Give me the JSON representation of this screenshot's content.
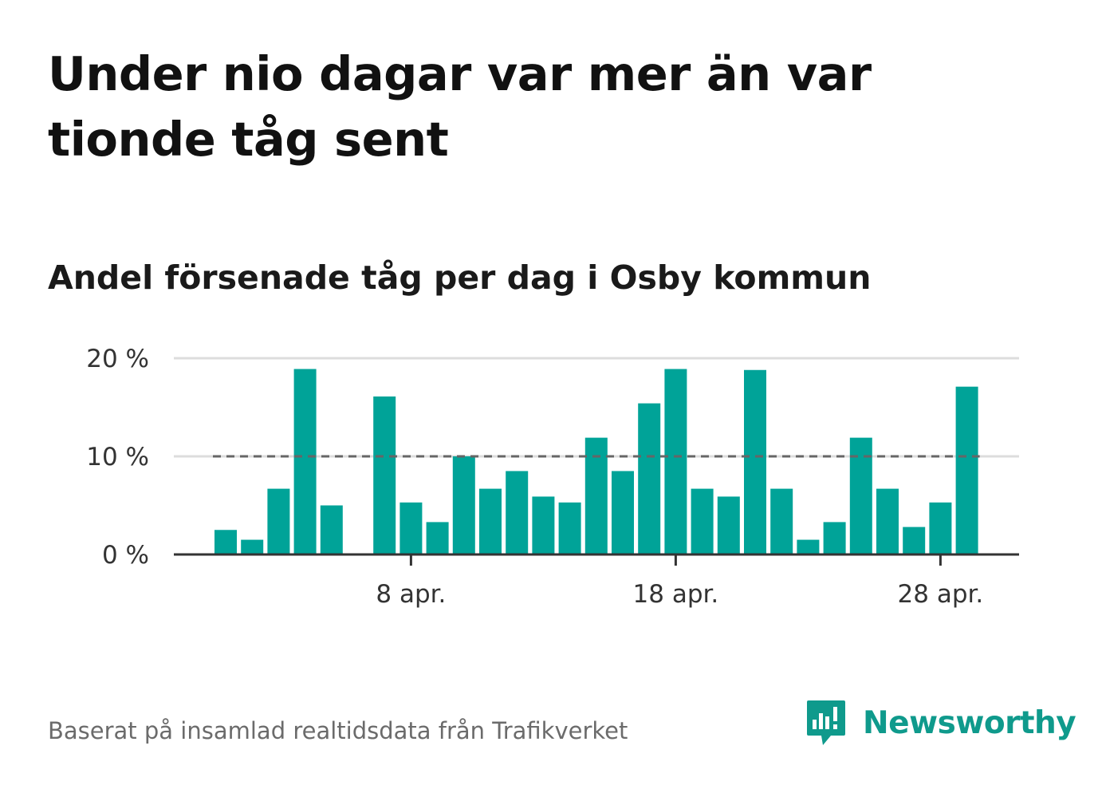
{
  "title": "Under nio dagar var mer än var tionde tåg sent",
  "subtitle": "Andel försenade tåg per dag i Osby kommun",
  "source": "Baserat på insamlad realtidsdata från Trafikverket",
  "brand": {
    "name": "Newsworthy",
    "color": "#0f9a8c"
  },
  "colors": {
    "bar": "#00a398",
    "reference_line": "#666666",
    "grid": "#dddddd",
    "axis": "#333333"
  },
  "chart_data": {
    "type": "bar",
    "x": [
      "2024-04-01",
      "2024-04-02",
      "2024-04-03",
      "2024-04-04",
      "2024-04-05",
      "2024-04-06",
      "2024-04-07",
      "2024-04-08",
      "2024-04-09",
      "2024-04-10",
      "2024-04-11",
      "2024-04-12",
      "2024-04-13",
      "2024-04-14",
      "2024-04-15",
      "2024-04-16",
      "2024-04-17",
      "2024-04-18",
      "2024-04-19",
      "2024-04-20",
      "2024-04-21",
      "2024-04-22",
      "2024-04-23",
      "2024-04-24",
      "2024-04-25",
      "2024-04-26",
      "2024-04-27",
      "2024-04-28",
      "2024-04-29"
    ],
    "values": [
      2.5,
      1.5,
      6.7,
      18.9,
      5.0,
      null,
      16.1,
      5.3,
      3.3,
      10.0,
      6.7,
      8.5,
      5.9,
      5.3,
      11.9,
      8.5,
      15.4,
      18.9,
      6.7,
      5.9,
      18.8,
      6.7,
      1.5,
      3.3,
      11.9,
      6.7,
      2.8,
      5.3,
      17.1
    ],
    "ylim": [
      0,
      20
    ],
    "yticks": [
      {
        "value": 0,
        "label": "0 %"
      },
      {
        "value": 10,
        "label": "10 %"
      },
      {
        "value": 20,
        "label": "20 %"
      }
    ],
    "xticks": [
      {
        "date": "2024-04-08",
        "label": "8 apr."
      },
      {
        "date": "2024-04-18",
        "label": "18 apr."
      },
      {
        "date": "2024-04-28",
        "label": "28 apr."
      }
    ],
    "reference_line": 10,
    "grid": true,
    "xlabel": "",
    "ylabel": ""
  }
}
